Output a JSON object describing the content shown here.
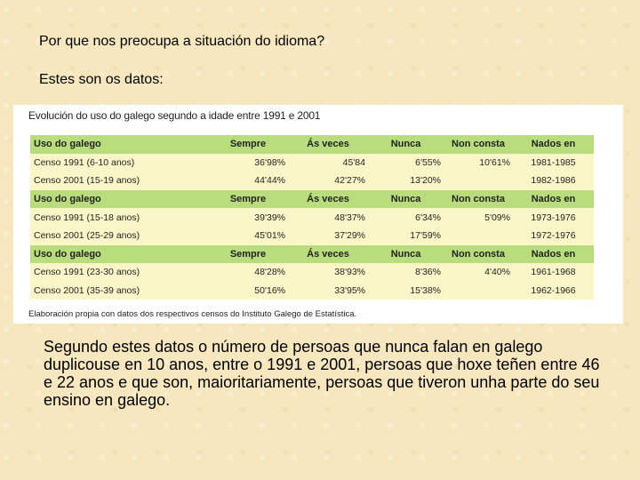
{
  "heading1": "Por que nos preocupa a situación do idioma?",
  "heading2": "Estes son os datos:",
  "panel": {
    "title": "Evolución do uso do galego segundo a idade entre 1991 e 2001",
    "footnote": "Elaboración propia con datos dos respectivos censos do Instituto Galego de Estatística."
  },
  "table": {
    "groups": [
      {
        "header": [
          "Uso do galego",
          "Sempre",
          "Ás veces",
          "Nunca",
          "Non consta",
          "Nados en"
        ],
        "rows": [
          [
            "Censo 1991 (6-10 anos)",
            "36'98%",
            "45'84",
            "6'55%",
            "10'61%",
            "1981-1985"
          ],
          [
            "Censo 2001 (15-19 anos)",
            "44'44%",
            "42'27%",
            "13'20%",
            "",
            "1982-1986"
          ]
        ]
      },
      {
        "header": [
          "Uso do galego",
          "Sempre",
          "Ás veces",
          "Nunca",
          "Non consta",
          "Nados en"
        ],
        "rows": [
          [
            "Censo 1991 (15-18 anos)",
            "39'39%",
            "48'37%",
            "6'34%",
            "5'09%",
            "1973-1976"
          ],
          [
            "Censo 2001 (25-29 anos)",
            "45'01%",
            "37'29%",
            "17'59%",
            "",
            "1972-1976"
          ]
        ]
      },
      {
        "header": [
          "Uso do galego",
          "Sempre",
          "Ás veces",
          "Nunca",
          "Non consta",
          "Nados en"
        ],
        "rows": [
          [
            "Censo 1991 (23-30 anos)",
            "48'28%",
            "38'93%",
            "8'36%",
            "4'40%",
            "1961-1968"
          ],
          [
            "Censo 2001 (35-39 anos)",
            "50'16%",
            "33'95%",
            "15'38%",
            "",
            "1962-1966"
          ]
        ]
      }
    ]
  },
  "body_text": "Segundo estes datos o número de persoas que nunca falan en galego duplicouse en 10 anos, entre o 1991 e 2001, persoas que hoxe teñen entre 46 e 22 anos e que son, maioritariamente, persoas que tiveron unha parte do seu ensino en galego."
}
